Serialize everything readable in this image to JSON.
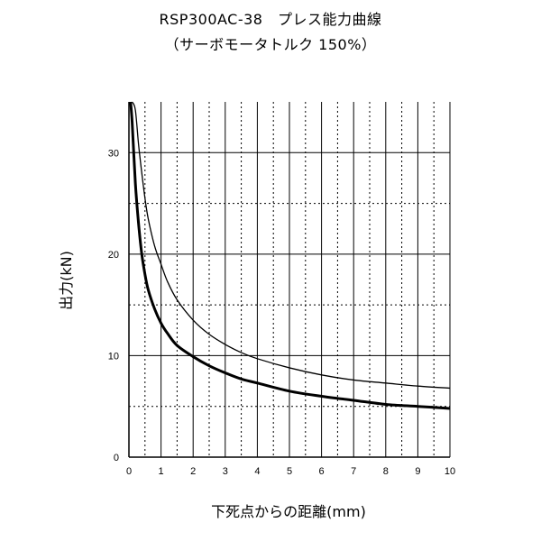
{
  "chart_data": {
    "type": "line",
    "title": "RSP300AC-38　プレス能力曲線",
    "subtitle": "（サーボモータトルク 150%）",
    "xlabel": "下死点からの距離(mm)",
    "ylabel": "出力(kN)",
    "xlim": [
      0,
      10
    ],
    "ylim": [
      0,
      35
    ],
    "xticks": [
      "0",
      "1",
      "2",
      "3",
      "4",
      "5",
      "6",
      "7",
      "8",
      "9",
      "10"
    ],
    "yticks": [
      "0",
      "10",
      "20",
      "30"
    ],
    "series": [
      {
        "name": "thin-curve",
        "x": [
          0.1,
          0.2,
          0.3,
          0.4,
          0.5,
          0.6,
          0.8,
          1,
          1.2,
          1.5,
          2,
          2.5,
          3,
          3.5,
          4,
          5,
          6,
          7,
          8,
          9,
          10
        ],
        "y": [
          35,
          34.2,
          30.8,
          28.0,
          25.5,
          23.5,
          20.8,
          19.0,
          17.3,
          15.5,
          13.5,
          12.1,
          11.1,
          10.3,
          9.7,
          8.8,
          8.1,
          7.6,
          7.3,
          7.0,
          6.8
        ]
      },
      {
        "name": "thick-curve",
        "x": [
          0.05,
          0.1,
          0.2,
          0.3,
          0.4,
          0.5,
          0.6,
          0.8,
          1,
          1.2,
          1.5,
          2,
          2.5,
          3,
          3.5,
          4,
          5,
          6,
          7,
          8,
          9,
          10
        ],
        "y": [
          35,
          33.0,
          27.0,
          23.0,
          20.0,
          18.0,
          16.5,
          14.6,
          13.2,
          12.2,
          11.0,
          9.9,
          9.0,
          8.3,
          7.7,
          7.3,
          6.5,
          6.0,
          5.6,
          5.2,
          5.0,
          4.8
        ]
      }
    ]
  }
}
